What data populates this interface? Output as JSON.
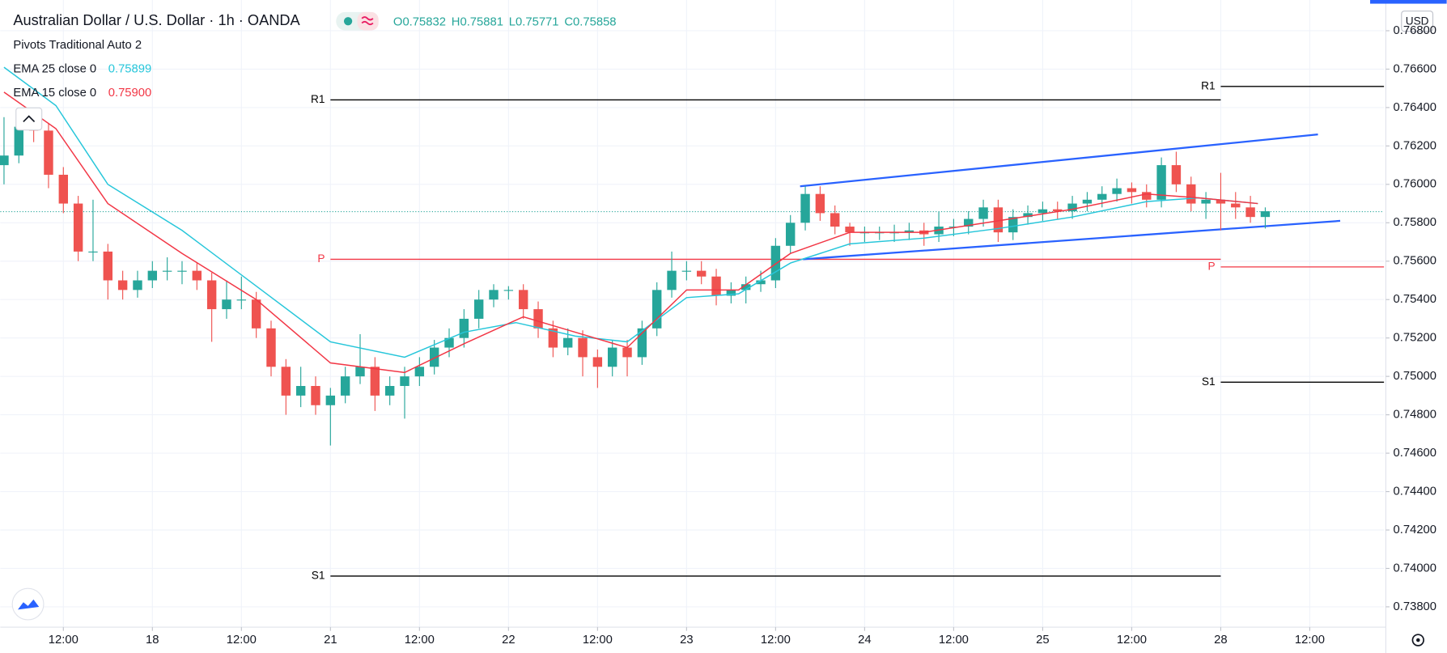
{
  "chart_data": {
    "type": "candlestick",
    "title": "Australian Dollar / U.S. Dollar · 1h · OANDA",
    "ohlc_labels": [
      "O0.75832",
      "H0.75881",
      "L0.75771",
      "C0.75858"
    ],
    "indicators": [
      "Pivots Traditional Auto 2"
    ],
    "currency": "USD",
    "up_color": "#26a69a",
    "down_color": "#ef5350",
    "xlim": [
      -0.5,
      186
    ],
    "xticks": [
      {
        "value": 8,
        "label": "12:00"
      },
      {
        "value": 20,
        "label": "18"
      },
      {
        "value": 32,
        "label": "12:00"
      },
      {
        "value": 44,
        "label": "21"
      },
      {
        "value": 56,
        "label": "12:00"
      },
      {
        "value": 68,
        "label": "22"
      },
      {
        "value": 80,
        "label": "12:00"
      },
      {
        "value": 92,
        "label": "23"
      },
      {
        "value": 104,
        "label": "12:00"
      },
      {
        "value": 116,
        "label": "24"
      },
      {
        "value": 128,
        "label": "12:00"
      },
      {
        "value": 140,
        "label": "25"
      },
      {
        "value": 152,
        "label": "12:00"
      },
      {
        "value": 164,
        "label": "28"
      },
      {
        "value": 176,
        "label": "12:00"
      }
    ],
    "ylim": [
      0.73694,
      0.7696
    ],
    "yticks": [
      {
        "value": 0.738,
        "label": "0.73800"
      },
      {
        "value": 0.74,
        "label": "0.74000"
      },
      {
        "value": 0.742,
        "label": "0.74200"
      },
      {
        "value": 0.744,
        "label": "0.74400"
      },
      {
        "value": 0.746,
        "label": "0.74600"
      },
      {
        "value": 0.748,
        "label": "0.74800"
      },
      {
        "value": 0.75,
        "label": "0.75000"
      },
      {
        "value": 0.752,
        "label": "0.75200"
      },
      {
        "value": 0.754,
        "label": "0.75400"
      },
      {
        "value": 0.756,
        "label": "0.75600"
      },
      {
        "value": 0.758,
        "label": "0.75800"
      },
      {
        "value": 0.76,
        "label": "0.76000"
      },
      {
        "value": 0.762,
        "label": "0.76200"
      },
      {
        "value": 0.764,
        "label": "0.76400"
      },
      {
        "value": 0.766,
        "label": "0.76600"
      },
      {
        "value": 0.768,
        "label": "0.76800"
      }
    ],
    "candles": {
      "x": [
        0,
        2,
        4,
        6,
        8,
        10,
        12,
        14,
        16,
        18,
        20,
        22,
        24,
        26,
        28,
        30,
        32,
        34,
        36,
        38,
        40,
        42,
        44,
        46,
        48,
        50,
        52,
        54,
        56,
        58,
        60,
        62,
        64,
        66,
        68,
        70,
        72,
        74,
        76,
        78,
        80,
        82,
        84,
        86,
        88,
        90,
        92,
        94,
        96,
        98,
        100,
        102,
        104,
        106,
        108,
        110,
        112,
        114,
        116,
        118,
        120,
        122,
        124,
        126,
        128,
        130,
        132,
        134,
        136,
        138,
        140,
        142,
        144,
        146,
        148,
        150,
        152,
        154,
        156,
        158,
        160,
        162,
        164,
        166,
        168,
        170
      ],
      "open": [
        0.761,
        0.7615,
        0.763,
        0.7628,
        0.7605,
        0.759,
        0.7565,
        0.7565,
        0.755,
        0.7545,
        0.755,
        0.7555,
        0.7555,
        0.7555,
        0.755,
        0.7535,
        0.754,
        0.754,
        0.7525,
        0.7505,
        0.749,
        0.7495,
        0.7485,
        0.749,
        0.75,
        0.7505,
        0.749,
        0.7495,
        0.75,
        0.7505,
        0.7515,
        0.752,
        0.753,
        0.754,
        0.7545,
        0.7545,
        0.7535,
        0.7525,
        0.7515,
        0.752,
        0.751,
        0.7505,
        0.7515,
        0.751,
        0.7525,
        0.7545,
        0.7555,
        0.7555,
        0.7552,
        0.7542,
        0.7545,
        0.7548,
        0.755,
        0.7568,
        0.758,
        0.7595,
        0.7585,
        0.7578,
        0.7575,
        0.7575,
        0.7575,
        0.7575,
        0.7576,
        0.7574,
        0.7578,
        0.7578,
        0.7582,
        0.7588,
        0.7575,
        0.7583,
        0.7585,
        0.7587,
        0.7586,
        0.759,
        0.7592,
        0.7595,
        0.7598,
        0.7596,
        0.7592,
        0.761,
        0.76,
        0.759,
        0.7592,
        0.759,
        0.7588,
        0.7583
      ],
      "high": [
        0.7635,
        0.7634,
        0.7634,
        0.7632,
        0.7609,
        0.7594,
        0.7592,
        0.7569,
        0.7555,
        0.7555,
        0.756,
        0.7562,
        0.756,
        0.7559,
        0.7554,
        0.755,
        0.7552,
        0.7544,
        0.7529,
        0.7509,
        0.7505,
        0.75,
        0.7494,
        0.7505,
        0.7522,
        0.751,
        0.75,
        0.7505,
        0.751,
        0.7519,
        0.7525,
        0.7535,
        0.7545,
        0.7548,
        0.7547,
        0.7548,
        0.7539,
        0.7529,
        0.7525,
        0.7524,
        0.7514,
        0.7519,
        0.7519,
        0.7529,
        0.7549,
        0.7565,
        0.756,
        0.756,
        0.7556,
        0.7549,
        0.7552,
        0.7555,
        0.7572,
        0.7584,
        0.7599,
        0.7599,
        0.7589,
        0.758,
        0.7578,
        0.7578,
        0.7579,
        0.758,
        0.758,
        0.7586,
        0.7582,
        0.7586,
        0.7592,
        0.7592,
        0.7587,
        0.7589,
        0.7591,
        0.7591,
        0.7594,
        0.7596,
        0.7599,
        0.7603,
        0.7601,
        0.76,
        0.7614,
        0.7617,
        0.7604,
        0.7596,
        0.7606,
        0.7596,
        0.7594,
        0.7588
      ],
      "low": [
        0.76,
        0.7611,
        0.7622,
        0.7598,
        0.7585,
        0.756,
        0.756,
        0.754,
        0.754,
        0.7541,
        0.7546,
        0.755,
        0.7548,
        0.7545,
        0.7518,
        0.753,
        0.7535,
        0.752,
        0.75,
        0.748,
        0.7484,
        0.748,
        0.7464,
        0.7486,
        0.7496,
        0.7482,
        0.7485,
        0.7478,
        0.7495,
        0.7501,
        0.751,
        0.7515,
        0.7525,
        0.7536,
        0.754,
        0.753,
        0.752,
        0.751,
        0.7511,
        0.75,
        0.7494,
        0.75,
        0.75,
        0.7506,
        0.7521,
        0.7541,
        0.755,
        0.7548,
        0.7537,
        0.7538,
        0.7538,
        0.7544,
        0.7546,
        0.7564,
        0.7576,
        0.7581,
        0.7574,
        0.7568,
        0.757,
        0.7571,
        0.757,
        0.7571,
        0.7568,
        0.757,
        0.7573,
        0.7574,
        0.7578,
        0.757,
        0.7571,
        0.7579,
        0.7581,
        0.7582,
        0.7582,
        0.7586,
        0.7588,
        0.7591,
        0.759,
        0.7588,
        0.7588,
        0.7596,
        0.7586,
        0.7582,
        0.7576,
        0.7582,
        0.758,
        0.7577
      ],
      "close": [
        0.7615,
        0.763,
        0.7628,
        0.7605,
        0.759,
        0.7565,
        0.7565,
        0.755,
        0.7545,
        0.755,
        0.7555,
        0.7555,
        0.7555,
        0.755,
        0.7535,
        0.754,
        0.754,
        0.7525,
        0.7505,
        0.749,
        0.7495,
        0.7485,
        0.749,
        0.75,
        0.7505,
        0.749,
        0.7495,
        0.75,
        0.7505,
        0.7515,
        0.752,
        0.753,
        0.754,
        0.7545,
        0.7545,
        0.7535,
        0.7525,
        0.7515,
        0.752,
        0.751,
        0.7505,
        0.7515,
        0.751,
        0.7525,
        0.7545,
        0.7555,
        0.7555,
        0.7552,
        0.7542,
        0.7545,
        0.7548,
        0.755,
        0.7568,
        0.758,
        0.7595,
        0.7585,
        0.7578,
        0.7575,
        0.7575,
        0.7575,
        0.7575,
        0.7576,
        0.7574,
        0.7578,
        0.7578,
        0.7582,
        0.7588,
        0.7575,
        0.7583,
        0.7585,
        0.7587,
        0.7586,
        0.759,
        0.7592,
        0.7595,
        0.7598,
        0.7596,
        0.7592,
        0.761,
        0.76,
        0.759,
        0.7592,
        0.759,
        0.7588,
        0.7583,
        0.7586
      ]
    },
    "series": [
      {
        "name": "EMA 25 close 0",
        "value_label": "0.75899",
        "color": "#26c6da",
        "x": [
          0,
          7,
          14,
          24,
          34,
          44,
          54,
          62,
          69,
          77,
          84,
          92,
          99,
          106,
          114,
          124,
          134,
          144,
          154,
          161,
          169
        ],
        "values": [
          0.7661,
          0.7641,
          0.76,
          0.7576,
          0.7547,
          0.7518,
          0.751,
          0.7523,
          0.7528,
          0.7521,
          0.7518,
          0.7541,
          0.7543,
          0.7559,
          0.7569,
          0.7572,
          0.7577,
          0.7583,
          0.7591,
          0.7593,
          0.759
        ]
      },
      {
        "name": "EMA 15 close 0",
        "value_label": "0.75900",
        "color": "#f23645",
        "x": [
          0,
          7,
          14,
          24,
          34,
          44,
          54,
          62,
          70,
          77,
          84,
          92,
          99,
          106,
          114,
          124,
          134,
          144,
          154,
          161,
          169
        ],
        "values": [
          0.7648,
          0.7629,
          0.759,
          0.7564,
          0.754,
          0.7507,
          0.7502,
          0.7517,
          0.7531,
          0.7523,
          0.7515,
          0.7545,
          0.7545,
          0.7564,
          0.7575,
          0.7575,
          0.7581,
          0.7587,
          0.7595,
          0.7593,
          0.759
        ]
      }
    ],
    "pivots": [
      {
        "label": "R1",
        "value": 0.7644,
        "x": [
          44,
          164
        ],
        "color": "#000000"
      },
      {
        "label": "P",
        "value": 0.7561,
        "x": [
          44,
          164
        ],
        "color": "#f23645"
      },
      {
        "label": "S1",
        "value": 0.7396,
        "x": [
          44,
          164
        ],
        "color": "#000000"
      },
      {
        "label": "R1",
        "value": 0.7651,
        "x": [
          164,
          186
        ],
        "color": "#000000"
      },
      {
        "label": "P",
        "value": 0.7557,
        "x": [
          164,
          186
        ],
        "color": "#f23645"
      },
      {
        "label": "S1",
        "value": 0.7497,
        "x": [
          164,
          186
        ],
        "color": "#000000"
      }
    ],
    "trendlines": [
      {
        "color": "#2962ff",
        "x": [
          107.3,
          177.1
        ],
        "values": [
          0.7599,
          0.7626
        ]
      },
      {
        "color": "#2962ff",
        "x": [
          107.7,
          180.1
        ],
        "values": [
          0.7561,
          0.7581
        ]
      }
    ],
    "last_price": 0.75858,
    "last_price_color": "#26a69a"
  }
}
